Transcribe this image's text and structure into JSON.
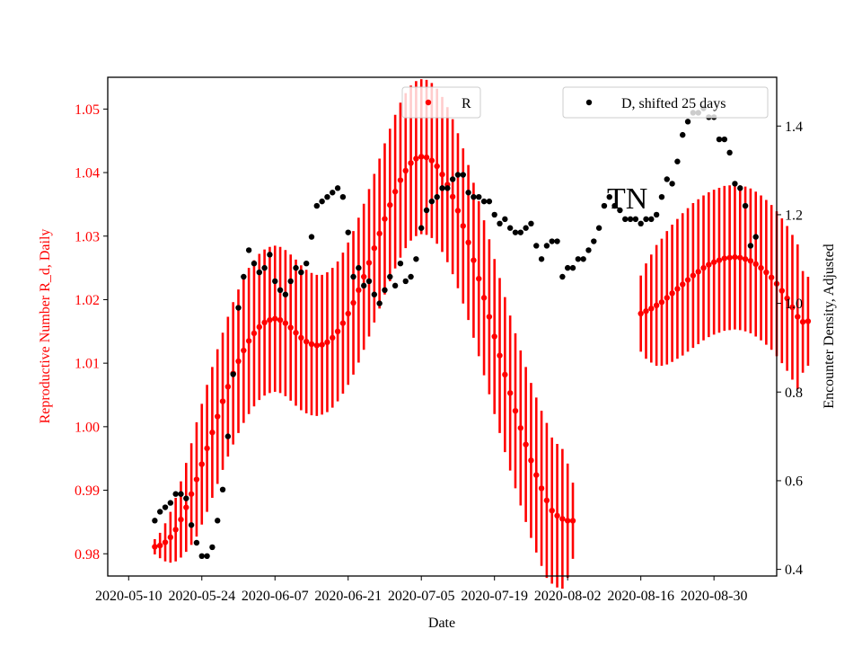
{
  "chart_data": {
    "type": "scatter",
    "title": "",
    "annotation": "TN",
    "xlabel": "Date",
    "ylabel_left": "Reproductive Number R_d, Daily",
    "ylabel_right": "Encounter Density, Adjusted",
    "left_axis_color": "#ff0000",
    "right_axis_color": "#000000",
    "xlim": [
      "2020-05-06",
      "2020-09-11"
    ],
    "ylim_left": [
      0.9765,
      1.055
    ],
    "ylim_right": [
      0.385,
      1.51
    ],
    "x_ticks": [
      "2020-05-10",
      "2020-05-24",
      "2020-06-07",
      "2020-06-21",
      "2020-07-05",
      "2020-07-19",
      "2020-08-02",
      "2020-08-16",
      "2020-08-30"
    ],
    "y_ticks_left": [
      "0.98",
      "0.99",
      "1.00",
      "1.01",
      "1.02",
      "1.03",
      "1.04",
      "1.05"
    ],
    "y_ticks_right": [
      "0.4",
      "0.6",
      "0.8",
      "1.0",
      "1.2",
      "1.4"
    ],
    "legend": [
      {
        "label": "R",
        "color": "#ff0000",
        "position": "top-center"
      },
      {
        "label": "D, shifted 25 days",
        "color": "#000000",
        "position": "top-right"
      }
    ],
    "series": [
      {
        "name": "R",
        "axis": "left",
        "color": "#ff0000",
        "start_date": "2020-05-15",
        "values": [
          0.9811,
          0.9813,
          0.9818,
          0.9826,
          0.9838,
          0.9854,
          0.9873,
          0.9894,
          0.9917,
          0.9941,
          0.9966,
          0.9991,
          1.0016,
          1.004,
          1.0063,
          1.0084,
          1.0103,
          1.012,
          1.0135,
          1.0147,
          1.0157,
          1.0164,
          1.0168,
          1.017,
          1.0168,
          1.0163,
          1.0156,
          1.0148,
          1.014,
          1.0134,
          1.013,
          1.0128,
          1.0129,
          1.0133,
          1.014,
          1.015,
          1.0163,
          1.0178,
          1.0195,
          1.0215,
          1.0236,
          1.0258,
          1.0281,
          1.0304,
          1.0327,
          1.0349,
          1.037,
          1.0388,
          1.0403,
          1.0415,
          1.0422,
          1.0425,
          1.0424,
          1.0419,
          1.041,
          1.0397,
          1.0381,
          1.0362,
          1.034,
          1.0316,
          1.029,
          1.0262,
          1.0233,
          1.0203,
          1.0173,
          1.0142,
          1.0112,
          1.0082,
          1.0053,
          1.0025,
          0.9998,
          0.9972,
          0.9947,
          0.9924,
          0.9903,
          0.9884,
          0.9868,
          0.986,
          0.9855,
          0.9852,
          0.9852
        ],
        "error": [
          0.0012,
          0.002,
          0.003,
          0.004,
          0.005,
          0.006,
          0.007,
          0.008,
          0.009,
          0.0095,
          0.01,
          0.0103,
          0.0106,
          0.0108,
          0.011,
          0.0112,
          0.0113,
          0.0114,
          0.0115,
          0.0115,
          0.0115,
          0.0115,
          0.0115,
          0.0115,
          0.0115,
          0.0115,
          0.0115,
          0.0115,
          0.0114,
          0.0113,
          0.0112,
          0.0111,
          0.011,
          0.011,
          0.011,
          0.011,
          0.0111,
          0.0112,
          0.0113,
          0.0114,
          0.0115,
          0.0116,
          0.0117,
          0.0118,
          0.0119,
          0.012,
          0.0121,
          0.0122,
          0.0122,
          0.0122,
          0.0122,
          0.0122,
          0.0122,
          0.0122,
          0.0122,
          0.0122,
          0.0122,
          0.0122,
          0.0122,
          0.0122,
          0.0122,
          0.0122,
          0.0122,
          0.0122,
          0.0122,
          0.0122,
          0.0122,
          0.0122,
          0.0122,
          0.0122,
          0.0122,
          0.0122,
          0.0122,
          0.0122,
          0.0122,
          0.0122,
          0.0115,
          0.0113,
          0.011,
          0.009,
          0.006
        ]
      },
      {
        "name": "R",
        "axis": "left",
        "color": "#ff0000",
        "start_date": "2020-08-16",
        "values": [
          1.0178,
          1.0182,
          1.0186,
          1.0191,
          1.0196,
          1.0203,
          1.021,
          1.0217,
          1.0224,
          1.0231,
          1.0238,
          1.0244,
          1.025,
          1.0255,
          1.0259,
          1.0262,
          1.0265,
          1.0266,
          1.0267,
          1.0266,
          1.0264,
          1.0261,
          1.0256,
          1.025,
          1.0243,
          1.0235,
          1.0225,
          1.0214,
          1.0202,
          1.0188,
          1.0173,
          1.0165,
          1.0166
        ],
        "error": [
          0.006,
          0.0075,
          0.0085,
          0.0095,
          0.01,
          0.0105,
          0.0108,
          0.011,
          0.0112,
          0.0113,
          0.0114,
          0.0114,
          0.0114,
          0.0114,
          0.0114,
          0.0114,
          0.0114,
          0.0114,
          0.0114,
          0.0114,
          0.0114,
          0.0114,
          0.0114,
          0.0114,
          0.0114,
          0.0114,
          0.0114,
          0.0114,
          0.0114,
          0.0114,
          0.0114,
          0.008,
          0.007
        ]
      },
      {
        "name": "D, shifted 25 days",
        "axis": "right",
        "color": "#000000",
        "points": [
          [
            "2020-05-15",
            0.51
          ],
          [
            "2020-05-16",
            0.53
          ],
          [
            "2020-05-17",
            0.54
          ],
          [
            "2020-05-18",
            0.55
          ],
          [
            "2020-05-19",
            0.57
          ],
          [
            "2020-05-20",
            0.57
          ],
          [
            "2020-05-21",
            0.56
          ],
          [
            "2020-05-22",
            0.5
          ],
          [
            "2020-05-23",
            0.46
          ],
          [
            "2020-05-24",
            0.43
          ],
          [
            "2020-05-25",
            0.43
          ],
          [
            "2020-05-26",
            0.45
          ],
          [
            "2020-05-27",
            0.51
          ],
          [
            "2020-05-28",
            0.58
          ],
          [
            "2020-05-29",
            0.7
          ],
          [
            "2020-05-30",
            0.84
          ],
          [
            "2020-05-31",
            0.99
          ],
          [
            "2020-06-01",
            1.06
          ],
          [
            "2020-06-02",
            1.12
          ],
          [
            "2020-06-03",
            1.09
          ],
          [
            "2020-06-04",
            1.07
          ],
          [
            "2020-06-05",
            1.08
          ],
          [
            "2020-06-06",
            1.11
          ],
          [
            "2020-06-07",
            1.05
          ],
          [
            "2020-06-08",
            1.03
          ],
          [
            "2020-06-09",
            1.02
          ],
          [
            "2020-06-10",
            1.05
          ],
          [
            "2020-06-11",
            1.08
          ],
          [
            "2020-06-12",
            1.07
          ],
          [
            "2020-06-13",
            1.09
          ],
          [
            "2020-06-14",
            1.15
          ],
          [
            "2020-06-15",
            1.22
          ],
          [
            "2020-06-16",
            1.23
          ],
          [
            "2020-06-17",
            1.24
          ],
          [
            "2020-06-18",
            1.25
          ],
          [
            "2020-06-19",
            1.26
          ],
          [
            "2020-06-20",
            1.24
          ],
          [
            "2020-06-21",
            1.16
          ],
          [
            "2020-06-22",
            1.06
          ],
          [
            "2020-06-23",
            1.08
          ],
          [
            "2020-06-24",
            1.04
          ],
          [
            "2020-06-25",
            1.05
          ],
          [
            "2020-06-26",
            1.02
          ],
          [
            "2020-06-27",
            1.0
          ],
          [
            "2020-06-28",
            1.03
          ],
          [
            "2020-06-29",
            1.06
          ],
          [
            "2020-06-30",
            1.04
          ],
          [
            "2020-07-01",
            1.09
          ],
          [
            "2020-07-02",
            1.05
          ],
          [
            "2020-07-03",
            1.06
          ],
          [
            "2020-07-04",
            1.1
          ],
          [
            "2020-07-05",
            1.17
          ],
          [
            "2020-07-06",
            1.21
          ],
          [
            "2020-07-07",
            1.23
          ],
          [
            "2020-07-08",
            1.24
          ],
          [
            "2020-07-09",
            1.26
          ],
          [
            "2020-07-10",
            1.26
          ],
          [
            "2020-07-11",
            1.28
          ],
          [
            "2020-07-12",
            1.29
          ],
          [
            "2020-07-13",
            1.29
          ],
          [
            "2020-07-14",
            1.25
          ],
          [
            "2020-07-15",
            1.24
          ],
          [
            "2020-07-16",
            1.24
          ],
          [
            "2020-07-17",
            1.23
          ],
          [
            "2020-07-18",
            1.23
          ],
          [
            "2020-07-19",
            1.2
          ],
          [
            "2020-07-20",
            1.18
          ],
          [
            "2020-07-21",
            1.19
          ],
          [
            "2020-07-22",
            1.17
          ],
          [
            "2020-07-23",
            1.16
          ],
          [
            "2020-07-24",
            1.16
          ],
          [
            "2020-07-25",
            1.17
          ],
          [
            "2020-07-26",
            1.18
          ],
          [
            "2020-07-27",
            1.13
          ],
          [
            "2020-07-28",
            1.1
          ],
          [
            "2020-07-29",
            1.13
          ],
          [
            "2020-07-30",
            1.14
          ],
          [
            "2020-07-31",
            1.14
          ],
          [
            "2020-08-01",
            1.06
          ],
          [
            "2020-08-02",
            1.08
          ],
          [
            "2020-08-03",
            1.08
          ],
          [
            "2020-08-04",
            1.1
          ],
          [
            "2020-08-05",
            1.1
          ],
          [
            "2020-08-06",
            1.12
          ],
          [
            "2020-08-07",
            1.14
          ],
          [
            "2020-08-08",
            1.17
          ],
          [
            "2020-08-09",
            1.22
          ],
          [
            "2020-08-10",
            1.24
          ],
          [
            "2020-08-11",
            1.22
          ],
          [
            "2020-08-12",
            1.21
          ],
          [
            "2020-08-13",
            1.19
          ],
          [
            "2020-08-14",
            1.19
          ],
          [
            "2020-08-15",
            1.19
          ],
          [
            "2020-08-16",
            1.18
          ],
          [
            "2020-08-17",
            1.19
          ],
          [
            "2020-08-18",
            1.19
          ],
          [
            "2020-08-19",
            1.2
          ],
          [
            "2020-08-20",
            1.24
          ],
          [
            "2020-08-21",
            1.28
          ],
          [
            "2020-08-22",
            1.27
          ],
          [
            "2020-08-23",
            1.32
          ],
          [
            "2020-08-24",
            1.38
          ],
          [
            "2020-08-25",
            1.41
          ],
          [
            "2020-08-26",
            1.43
          ],
          [
            "2020-08-27",
            1.43
          ],
          [
            "2020-08-28",
            1.44
          ],
          [
            "2020-08-29",
            1.42
          ],
          [
            "2020-08-30",
            1.42
          ],
          [
            "2020-08-31",
            1.37
          ],
          [
            "2020-09-01",
            1.37
          ],
          [
            "2020-09-02",
            1.34
          ],
          [
            "2020-09-03",
            1.27
          ],
          [
            "2020-09-04",
            1.26
          ],
          [
            "2020-09-05",
            1.22
          ],
          [
            "2020-09-06",
            1.13
          ],
          [
            "2020-09-07",
            1.15
          ]
        ]
      }
    ]
  }
}
